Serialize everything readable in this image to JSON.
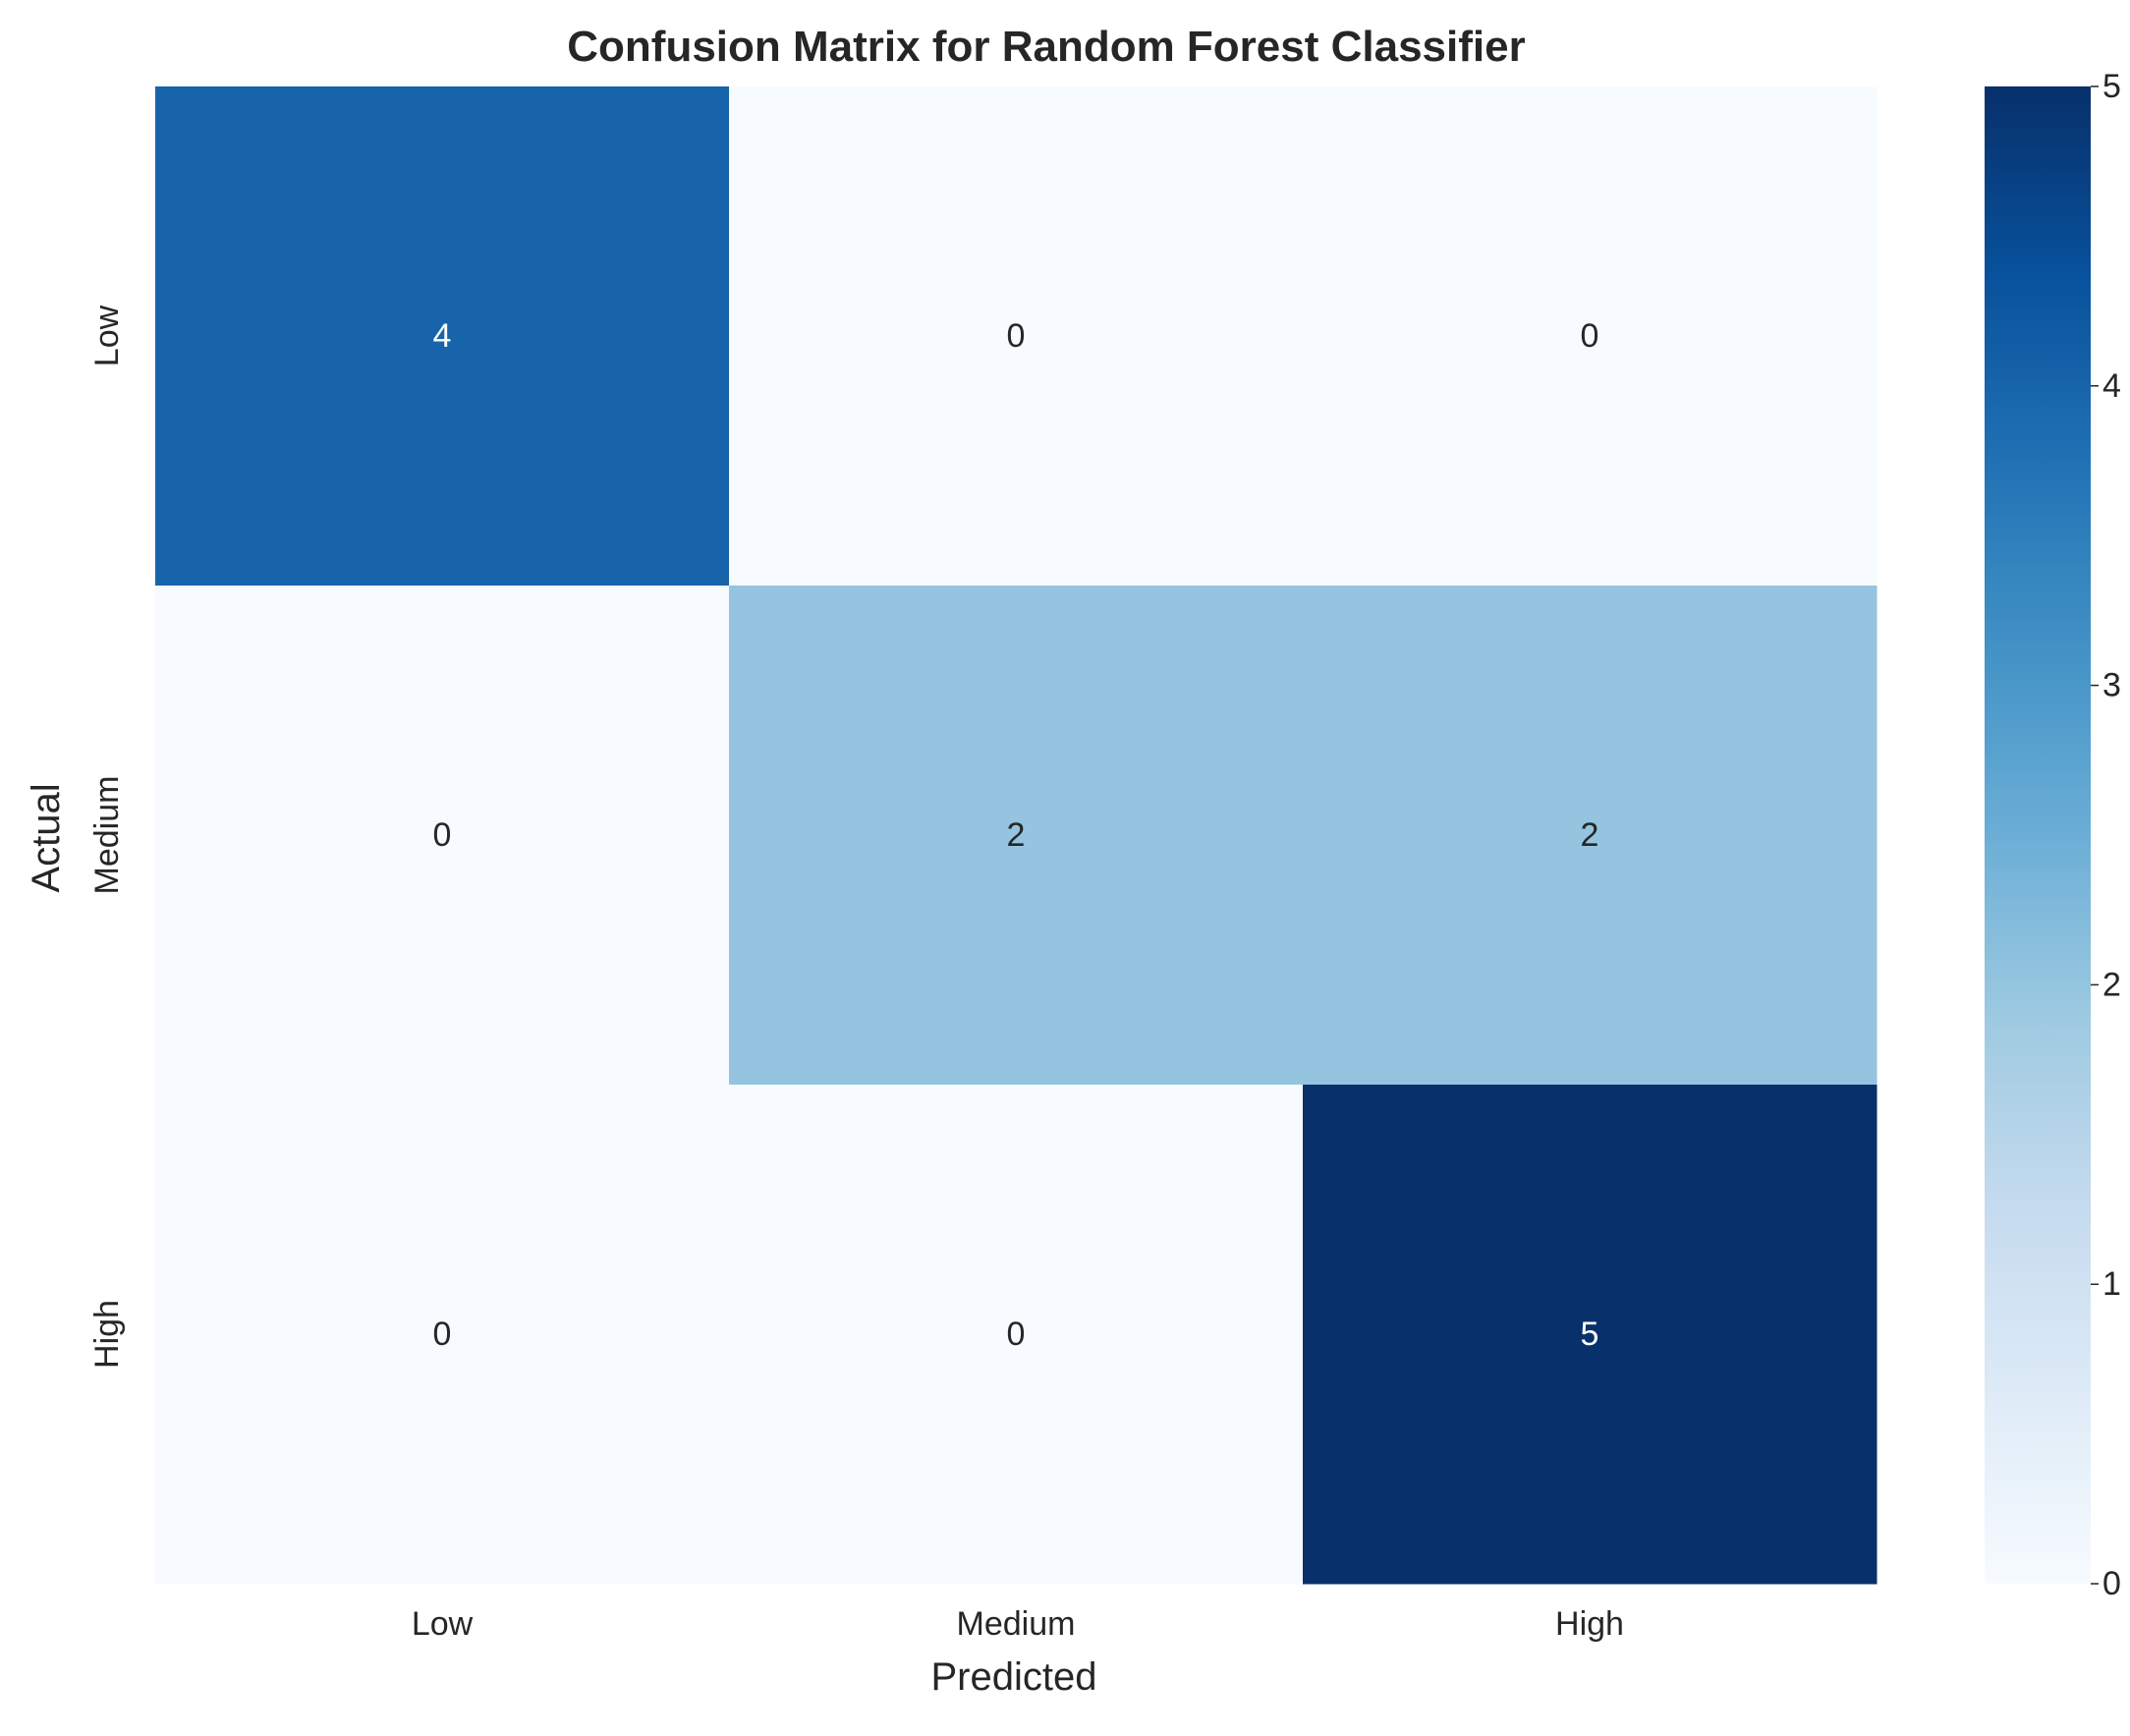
{
  "chart_data": {
    "type": "heatmap",
    "title": "Confusion Matrix for Random Forest Classifier",
    "xlabel": "Predicted",
    "ylabel": "Actual",
    "x_categories": [
      "Low",
      "Medium",
      "High"
    ],
    "y_categories": [
      "Low",
      "Medium",
      "High"
    ],
    "values": [
      [
        4,
        0,
        0
      ],
      [
        0,
        2,
        2
      ],
      [
        0,
        0,
        5
      ]
    ],
    "colorbar": {
      "min": 0,
      "max": 5,
      "ticks": [
        "0",
        "1",
        "2",
        "3",
        "4",
        "5"
      ],
      "colormap": "Blues"
    },
    "annotations": true
  }
}
